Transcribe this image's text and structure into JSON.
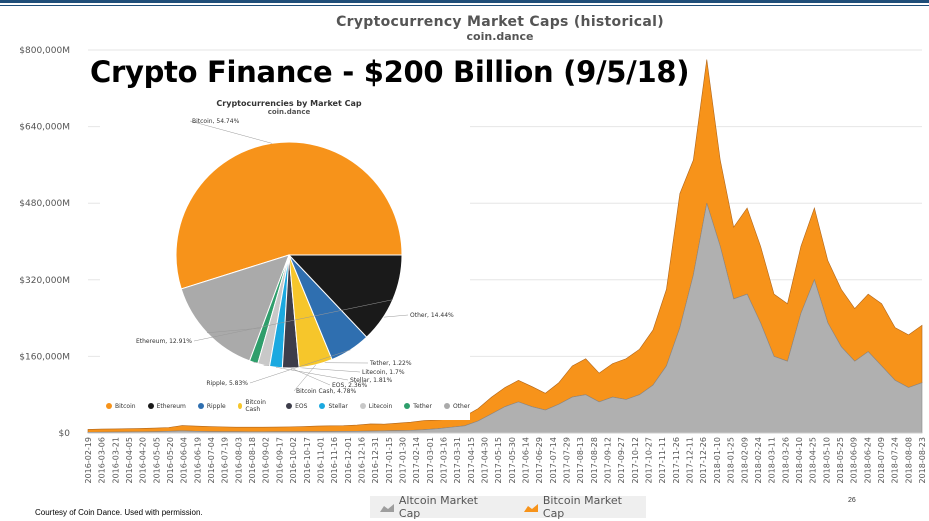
{
  "slide": {
    "title": "Crypto Finance - $200 Billion (9/5/18)",
    "credit": "Courtesy of Coin Dance. Used with permission.",
    "page_number": "26"
  },
  "chart_data": [
    {
      "type": "area",
      "title": "Cryptocurrency Market Caps (historical)",
      "subtitle": "coin.dance",
      "stacked": true,
      "ylim": [
        0,
        800000
      ],
      "y_ticks": [
        "$0",
        "$160,000M",
        "$320,000M",
        "$480,000M",
        "$640,000M",
        "$800,000M"
      ],
      "y_tick_values": [
        0,
        160000,
        320000,
        480000,
        640000,
        800000
      ],
      "x": [
        "2016-02-19",
        "2016-03-06",
        "2016-03-21",
        "2016-04-05",
        "2016-04-20",
        "2016-05-05",
        "2016-05-20",
        "2016-06-04",
        "2016-06-19",
        "2016-07-04",
        "2016-07-19",
        "2016-08-03",
        "2016-08-18",
        "2016-09-02",
        "2016-09-17",
        "2016-10-02",
        "2016-10-17",
        "2016-11-01",
        "2016-11-16",
        "2016-12-01",
        "2016-12-16",
        "2016-12-31",
        "2017-01-15",
        "2017-01-30",
        "2017-02-14",
        "2017-03-01",
        "2017-03-16",
        "2017-03-31",
        "2017-04-15",
        "2017-04-30",
        "2017-05-15",
        "2017-05-30",
        "2017-06-14",
        "2017-06-29",
        "2017-07-14",
        "2017-07-29",
        "2017-08-13",
        "2017-08-28",
        "2017-09-12",
        "2017-09-27",
        "2017-10-12",
        "2017-10-27",
        "2017-11-11",
        "2017-11-26",
        "2017-12-11",
        "2017-12-26",
        "2018-01-10",
        "2018-01-25",
        "2018-02-09",
        "2018-02-24",
        "2018-03-11",
        "2018-03-26",
        "2018-04-10",
        "2018-04-25",
        "2018-05-10",
        "2018-05-25",
        "2018-06-09",
        "2018-06-24",
        "2018-07-09",
        "2018-07-24",
        "2018-08-08",
        "2018-08-23",
        "2018-09-05"
      ],
      "x_tick_labels": [
        "2016-02-19",
        "2016-03-06",
        "2016-03-21",
        "2016-04-05",
        "2016-04-20",
        "2016-05-05",
        "2016-05-20",
        "2016-06-04",
        "2016-06-19",
        "2016-07-04",
        "2016-07-19",
        "2016-08-03",
        "2016-08-18",
        "2016-09-02",
        "2016-09-17",
        "2016-10-02",
        "2016-10-17",
        "2016-11-01",
        "2016-11-16",
        "2016-12-01",
        "2016-12-16",
        "2016-12-31",
        "2017-01-15",
        "2017-01-30",
        "2017-02-14",
        "2017-03-01",
        "2017-03-16",
        "2017-03-31",
        "2017-04-15",
        "2017-04-30",
        "2017-05-15",
        "2017-05-30",
        "2017-06-14",
        "2017-06-29",
        "2017-07-14",
        "2017-07-29",
        "2017-08-13",
        "2017-08-28",
        "2017-09-12",
        "2017-09-27",
        "2017-10-12",
        "2017-10-27",
        "2017-11-11",
        "2017-11-26",
        "2017-12-11",
        "2017-12-26",
        "2018-01-10",
        "2018-01-25",
        "2018-02-09",
        "2018-02-24",
        "2018-03-11",
        "2018-03-26",
        "2018-04-10",
        "2018-04-25",
        "2018-05-10",
        "2018-05-25",
        "2018-06-09",
        "2018-06-24",
        "2018-07-09",
        "2018-07-24",
        "2018-08-08",
        "2018-08-23"
      ],
      "series": [
        {
          "name": "Altcoin Market Cap",
          "color": "#b0b0b0",
          "values": [
            1500,
            1800,
            2000,
            2200,
            2500,
            2800,
            3500,
            4500,
            3500,
            3000,
            2800,
            2700,
            2600,
            2600,
            2700,
            2800,
            2900,
            3000,
            3100,
            3300,
            3500,
            4000,
            4500,
            5000,
            5500,
            7000,
            9000,
            12000,
            15000,
            25000,
            40000,
            55000,
            65000,
            55000,
            48000,
            60000,
            75000,
            80000,
            65000,
            75000,
            70000,
            80000,
            100000,
            140000,
            220000,
            330000,
            480000,
            390000,
            280000,
            290000,
            230000,
            160000,
            150000,
            250000,
            320000,
            230000,
            180000,
            150000,
            170000,
            140000,
            110000,
            95000,
            105000
          ]
        },
        {
          "name": "Bitcoin Market Cap",
          "color": "#f7931a",
          "values": [
            6000,
            6500,
            6500,
            6800,
            7000,
            7500,
            8000,
            11000,
            11000,
            10500,
            10000,
            9500,
            9500,
            9500,
            9800,
            10000,
            10500,
            11500,
            12000,
            12000,
            13000,
            15000,
            14000,
            15500,
            17000,
            19000,
            18000,
            17000,
            20000,
            26000,
            35000,
            40000,
            45000,
            42000,
            35000,
            45000,
            65000,
            75000,
            60000,
            70000,
            85000,
            95000,
            115000,
            160000,
            280000,
            240000,
            300000,
            180000,
            150000,
            180000,
            160000,
            130000,
            120000,
            140000,
            150000,
            130000,
            120000,
            110000,
            120000,
            130000,
            110000,
            110000,
            120000
          ]
        }
      ]
    },
    {
      "type": "pie",
      "title": "Cryptocurrencies by Market Cap",
      "subtitle": "coin.dance",
      "labels": [
        "Bitcoin",
        "Other",
        "Tether",
        "Litecoin",
        "Stellar",
        "EOS",
        "Bitcoin Cash",
        "Ripple",
        "Ethereum"
      ],
      "values": [
        54.74,
        14.44,
        1.22,
        1.7,
        1.81,
        2.36,
        4.78,
        5.83,
        12.91
      ],
      "value_labels": [
        "Bitcoin, 54.74%",
        "Other, 14.44%",
        "Tether, 1.22%",
        "Litecoin, 1.7%",
        "Stellar, 1.81%",
        "EOS, 2.36%",
        "Bitcoin Cash, 4.78%",
        "Ripple, 5.83%",
        "Ethereum, 12.91%"
      ],
      "colors": [
        "#f7931a",
        "#aaaaaa",
        "#2e9e6b",
        "#c8c8c8",
        "#1ba9e0",
        "#3d3d4a",
        "#f6c62b",
        "#2f6fb0",
        "#1a1a1a"
      ],
      "legend": {
        "position": "bottom",
        "items": [
          {
            "label": "Bitcoin",
            "color": "#f7931a"
          },
          {
            "label": "Ethereum",
            "color": "#1a1a1a"
          },
          {
            "label": "Ripple",
            "color": "#2f6fb0"
          },
          {
            "label": "Bitcoin Cash",
            "color": "#f6c62b"
          },
          {
            "label": "EOS",
            "color": "#3d3d4a"
          },
          {
            "label": "Stellar",
            "color": "#1ba9e0"
          },
          {
            "label": "Litecoin",
            "color": "#c8c8c8"
          },
          {
            "label": "Tether",
            "color": "#2e9e6b"
          },
          {
            "label": "Other",
            "color": "#aaaaaa"
          }
        ]
      }
    }
  ]
}
